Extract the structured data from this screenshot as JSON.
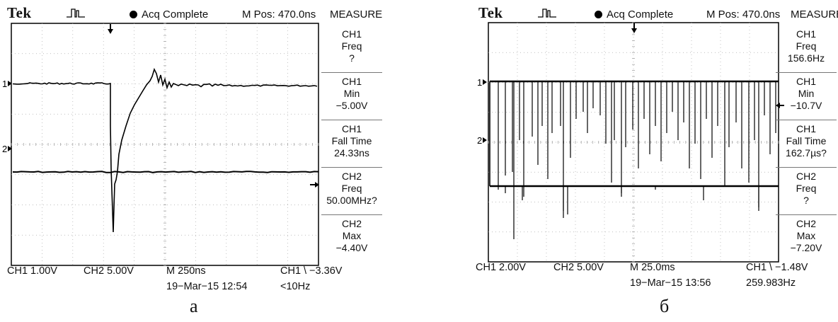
{
  "panel_a": {
    "brand": "Tek",
    "status": "Acq Complete",
    "m_pos": "M Pos: 470.0ns",
    "measure_title": "MEASURE",
    "ch1_marker": "1",
    "ch2_marker": "2",
    "measurements": [
      {
        "channel": "CH1",
        "name": "Freq",
        "value": "?"
      },
      {
        "channel": "CH1",
        "name": "Min",
        "value": "−5.00V"
      },
      {
        "channel": "CH1",
        "name": "Fall Time",
        "value": "24.33ns"
      },
      {
        "channel": "CH2",
        "name": "Freq",
        "value": "50.00MHz?"
      },
      {
        "channel": "CH2",
        "name": "Max",
        "value": "−4.40V"
      }
    ],
    "footer": {
      "ch1_scale": "CH1  1.00V",
      "ch2_scale": "CH2  5.00V",
      "timebase": "M 250ns",
      "trigger": "CH1 \\ −3.36V",
      "date": "19−Mar−15 12:54",
      "trigger_freq": "<10Hz"
    },
    "caption": "а"
  },
  "panel_b": {
    "brand": "Tek",
    "status": "Acq Complete",
    "m_pos": "M Pos: 470.0ns",
    "measure_title": "MEASURE",
    "ch1_marker": "1",
    "ch2_marker": "2",
    "measurements": [
      {
        "channel": "CH1",
        "name": "Freq",
        "value": "156.6Hz"
      },
      {
        "channel": "CH1",
        "name": "Min",
        "value": "−10.7V"
      },
      {
        "channel": "CH1",
        "name": "Fall Time",
        "value": "162.7µs?"
      },
      {
        "channel": "CH2",
        "name": "Freq",
        "value": "?"
      },
      {
        "channel": "CH2",
        "name": "Max",
        "value": "−7.20V"
      }
    ],
    "footer": {
      "ch1_scale": "CH1  2.00V",
      "ch2_scale": "CH2  5.00V",
      "timebase": "M 25.0ms",
      "trigger": "CH1 \\ −1.48V",
      "date": "19−Mar−15 13:56",
      "trigger_freq": "259.983Hz"
    },
    "caption": "б"
  }
}
